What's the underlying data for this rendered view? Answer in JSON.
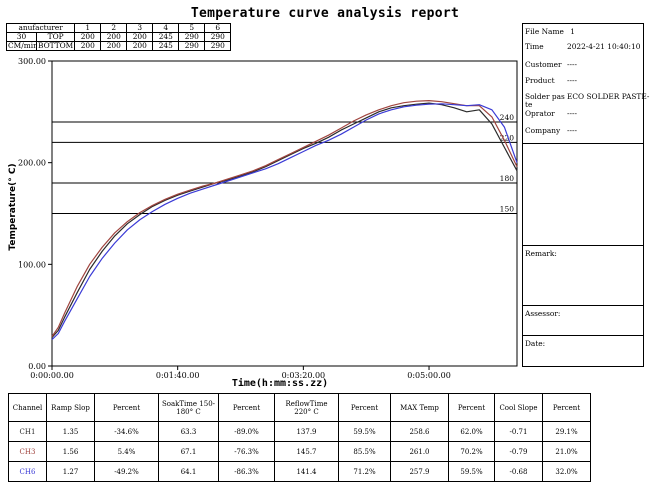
{
  "title": "Temperature curve analysis report",
  "oven": {
    "header": [
      "anufacturer",
      "1",
      "2",
      "3",
      "4",
      "5",
      "6"
    ],
    "rows": [
      {
        "speed": "30",
        "side": "TOP",
        "temps": [
          "200",
          "200",
          "200",
          "245",
          "290",
          "290"
        ]
      },
      {
        "speed": "CM/min",
        "side": "BOTTOM",
        "temps": [
          "200",
          "200",
          "200",
          "245",
          "290",
          "290"
        ]
      }
    ]
  },
  "info": {
    "file_name_label": "File Name",
    "file_name_value": "1",
    "time_label": "Time",
    "time_value": "2022-4-21 10:40:10",
    "customer_label": "Customer",
    "customer_value": "----",
    "product_label": "Product",
    "product_value": "----",
    "solder_label": "Solder pas",
    "solder_label2": "te",
    "solder_value": "ECO SOLDER PASTE-",
    "operator_label": "Oprator",
    "operator_value": "----",
    "company_label": "Company",
    "company_value": "----",
    "remark_label": "Remark:",
    "assessor_label": "Assessor:",
    "date_label": "Date:"
  },
  "chart_data": {
    "type": "line",
    "xlabel": "Time(h:mm:ss.zz)",
    "ylabel": "Temperature(° C)",
    "xlim": [
      0,
      370
    ],
    "ylim": [
      0,
      300
    ],
    "xticks": [
      0,
      100,
      200,
      300
    ],
    "xtick_labels": [
      "0:00:00.00",
      "0:01:40.00",
      "0:03:20.00",
      "0:05:00.00"
    ],
    "yticks": [
      0,
      100,
      200,
      300
    ],
    "ytick_labels": [
      "0.00",
      "100.00",
      "200.00",
      "300.00"
    ],
    "reference_lines": [
      {
        "value": 240,
        "label": "240"
      },
      {
        "value": 220,
        "label": "220"
      },
      {
        "value": 180,
        "label": "180"
      },
      {
        "value": 150,
        "label": "150"
      }
    ],
    "series": [
      {
        "name": "CH1",
        "color": "#2b2b2b",
        "x": [
          0,
          5,
          10,
          20,
          30,
          40,
          50,
          60,
          70,
          80,
          90,
          100,
          110,
          120,
          130,
          140,
          150,
          160,
          170,
          180,
          190,
          200,
          210,
          220,
          230,
          240,
          250,
          260,
          270,
          280,
          290,
          300,
          310,
          320,
          330,
          340,
          350,
          360,
          370
        ],
        "y": [
          28,
          35,
          48,
          72,
          95,
          113,
          128,
          140,
          149,
          157,
          163,
          168,
          172,
          176,
          180,
          183,
          187,
          191,
          196,
          202,
          208,
          214,
          219,
          225,
          232,
          238,
          244,
          250,
          254,
          256,
          257.5,
          258.6,
          257,
          254,
          250,
          252,
          238,
          215,
          192
        ]
      },
      {
        "name": "CH3",
        "color": "#a0453f",
        "x": [
          0,
          5,
          10,
          20,
          30,
          40,
          50,
          60,
          70,
          80,
          90,
          100,
          110,
          120,
          130,
          140,
          150,
          160,
          170,
          180,
          190,
          200,
          210,
          220,
          230,
          240,
          250,
          260,
          270,
          280,
          290,
          300,
          310,
          320,
          330,
          340,
          350,
          360,
          370
        ],
        "y": [
          29,
          38,
          52,
          78,
          100,
          117,
          131,
          142,
          151,
          158,
          164,
          169,
          173,
          177,
          180,
          184,
          188,
          192,
          197,
          203,
          209,
          215,
          221,
          227,
          234,
          241,
          247,
          252,
          256,
          259,
          260.5,
          261,
          260,
          258,
          256,
          256,
          245,
          222,
          196
        ]
      },
      {
        "name": "CH6",
        "color": "#3b3bd6",
        "x": [
          0,
          5,
          10,
          20,
          30,
          40,
          50,
          60,
          70,
          80,
          90,
          100,
          110,
          120,
          130,
          140,
          150,
          160,
          170,
          180,
          190,
          200,
          210,
          220,
          230,
          240,
          250,
          260,
          270,
          280,
          290,
          300,
          310,
          320,
          330,
          340,
          350,
          360,
          370
        ],
        "y": [
          26,
          32,
          44,
          66,
          88,
          106,
          121,
          134,
          144,
          152,
          159,
          165,
          170,
          174,
          178,
          182,
          186,
          190,
          194,
          199,
          205,
          211,
          217,
          222,
          228,
          235,
          242,
          248,
          252,
          255,
          256.5,
          257.5,
          257.9,
          257,
          256,
          257,
          252,
          235,
          200
        ]
      }
    ]
  },
  "results": {
    "headers": [
      "Channel",
      "Ramp Slop",
      "Percent",
      "SoakTime 150-180° C",
      "Percent",
      "ReflowTime 220° C",
      "Percent",
      "MAX Temp",
      "Percent",
      "Cool Slope",
      "Percent"
    ],
    "rows": [
      {
        "channel": "CH1",
        "color": "#2b2b2b",
        "values": [
          "1.35",
          "-34.6%",
          "63.3",
          "-89.0%",
          "137.9",
          "59.5%",
          "258.6",
          "62.0%",
          "-0.71",
          "29.1%"
        ]
      },
      {
        "channel": "CH3",
        "color": "#a0453f",
        "values": [
          "1.56",
          "5.4%",
          "67.1",
          "-76.3%",
          "145.7",
          "85.5%",
          "261.0",
          "70.2%",
          "-0.79",
          "21.0%"
        ]
      },
      {
        "channel": "CH6",
        "color": "#3b3bd6",
        "values": [
          "1.27",
          "-49.2%",
          "64.1",
          "-86.3%",
          "141.4",
          "71.2%",
          "257.9",
          "59.5%",
          "-0.68",
          "32.0%"
        ]
      }
    ]
  }
}
